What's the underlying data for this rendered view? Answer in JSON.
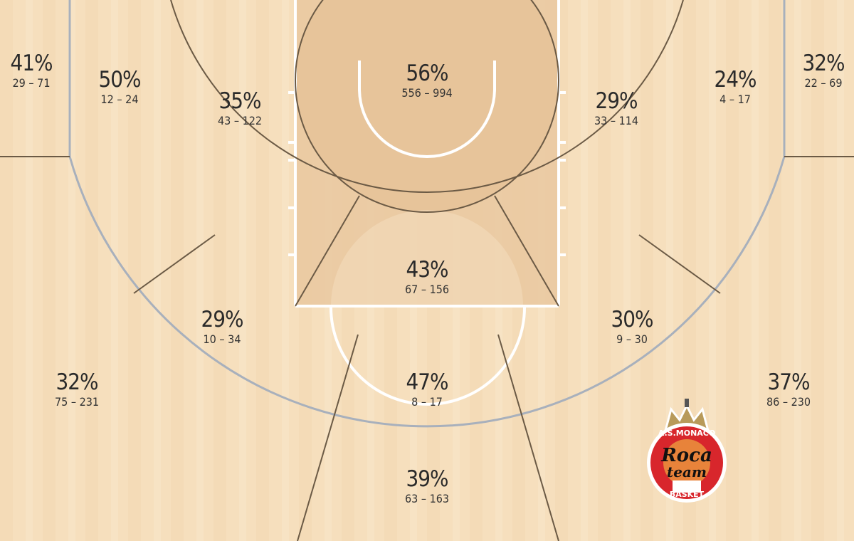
{
  "chart_data": {
    "type": "heatmap",
    "title": "",
    "colors": {
      "floor": "#f6dfbd",
      "paint": "#e9c8a0",
      "zone_line": "#6b5a45",
      "three_point_line": "#a8b0bc",
      "court_line": "#ffffff"
    },
    "zones": [
      {
        "id": "left-corner-three",
        "pct": "41%",
        "counts": "29 – 71",
        "made": 29,
        "attempts": 71
      },
      {
        "id": "left-baseline-mid",
        "pct": "50%",
        "counts": "12 – 24",
        "made": 12,
        "attempts": 24
      },
      {
        "id": "left-short-mid",
        "pct": "35%",
        "counts": "43 – 122",
        "made": 43,
        "attempts": 122
      },
      {
        "id": "restricted-area",
        "pct": "56%",
        "counts": "556 – 994",
        "made": 556,
        "attempts": 994
      },
      {
        "id": "right-short-mid",
        "pct": "29%",
        "counts": "33 – 114",
        "made": 33,
        "attempts": 114
      },
      {
        "id": "right-baseline-mid",
        "pct": "24%",
        "counts": "4 – 17",
        "made": 4,
        "attempts": 17
      },
      {
        "id": "right-corner-three",
        "pct": "32%",
        "counts": "22 – 69",
        "made": 22,
        "attempts": 69
      },
      {
        "id": "paint-non-ra",
        "pct": "43%",
        "counts": "67 – 156",
        "made": 67,
        "attempts": 156
      },
      {
        "id": "left-wing-mid",
        "pct": "29%",
        "counts": "10 – 34",
        "made": 10,
        "attempts": 34
      },
      {
        "id": "right-wing-mid",
        "pct": "30%",
        "counts": "9 – 30",
        "made": 9,
        "attempts": 30
      },
      {
        "id": "top-key-mid",
        "pct": "47%",
        "counts": "8 – 17",
        "made": 8,
        "attempts": 17
      },
      {
        "id": "left-wing-three",
        "pct": "32%",
        "counts": "75 – 231",
        "made": 75,
        "attempts": 231
      },
      {
        "id": "right-wing-three",
        "pct": "37%",
        "counts": "86 – 230",
        "made": 86,
        "attempts": 230
      },
      {
        "id": "top-key-three",
        "pct": "39%",
        "counts": "63 – 163",
        "made": 63,
        "attempts": 163
      }
    ]
  },
  "logo": {
    "top_text": "A.S.MONACO",
    "script_text": "Roca Team",
    "bottom_text": "BASKET"
  }
}
